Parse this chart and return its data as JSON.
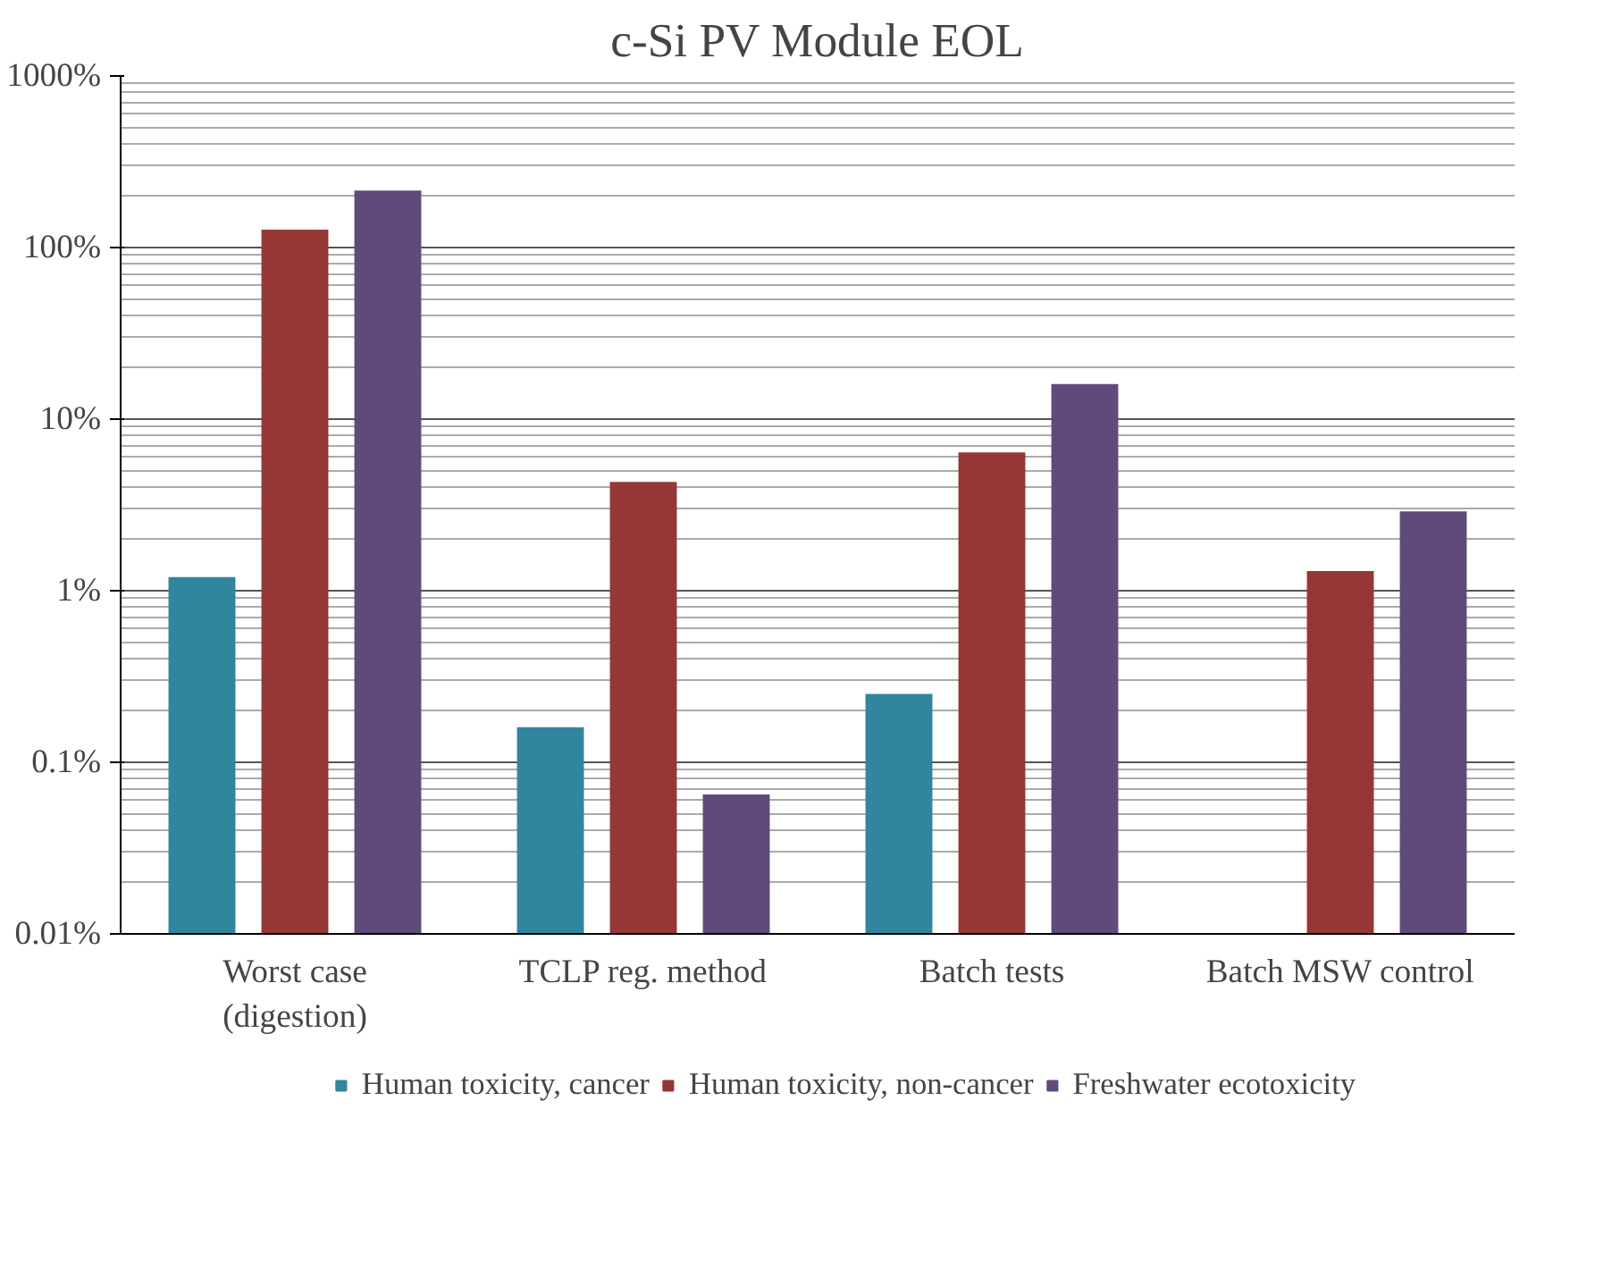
{
  "chart_data": {
    "type": "bar",
    "title": "c-Si PV Module EOL",
    "categories": [
      "Worst case\n(digestion)",
      "TCLP reg. method",
      "Batch tests",
      "Batch MSW control"
    ],
    "series": [
      {
        "name": "Human toxicity, cancer",
        "color": "#31859c",
        "values": [
          1.2,
          0.16,
          0.25,
          null
        ]
      },
      {
        "name": "Human toxicity, non-cancer",
        "color": "#953735",
        "values": [
          127,
          4.3,
          6.4,
          1.3
        ]
      },
      {
        "name": "Freshwater ecotoxicity",
        "color": "#604a7b",
        "values": [
          215,
          0.065,
          16,
          2.9
        ]
      }
    ],
    "log": "y",
    "ylim": [
      0.01,
      1000
    ],
    "yticks": [
      {
        "value": 0.01,
        "label": "0.01%"
      },
      {
        "value": 0.1,
        "label": "0.1%"
      },
      {
        "value": 1,
        "label": "1%"
      },
      {
        "value": 10,
        "label": "10%"
      },
      {
        "value": 100,
        "label": "100%"
      },
      {
        "value": 1000,
        "label": "1000%"
      }
    ],
    "grid": "y",
    "legend": "bottom"
  }
}
